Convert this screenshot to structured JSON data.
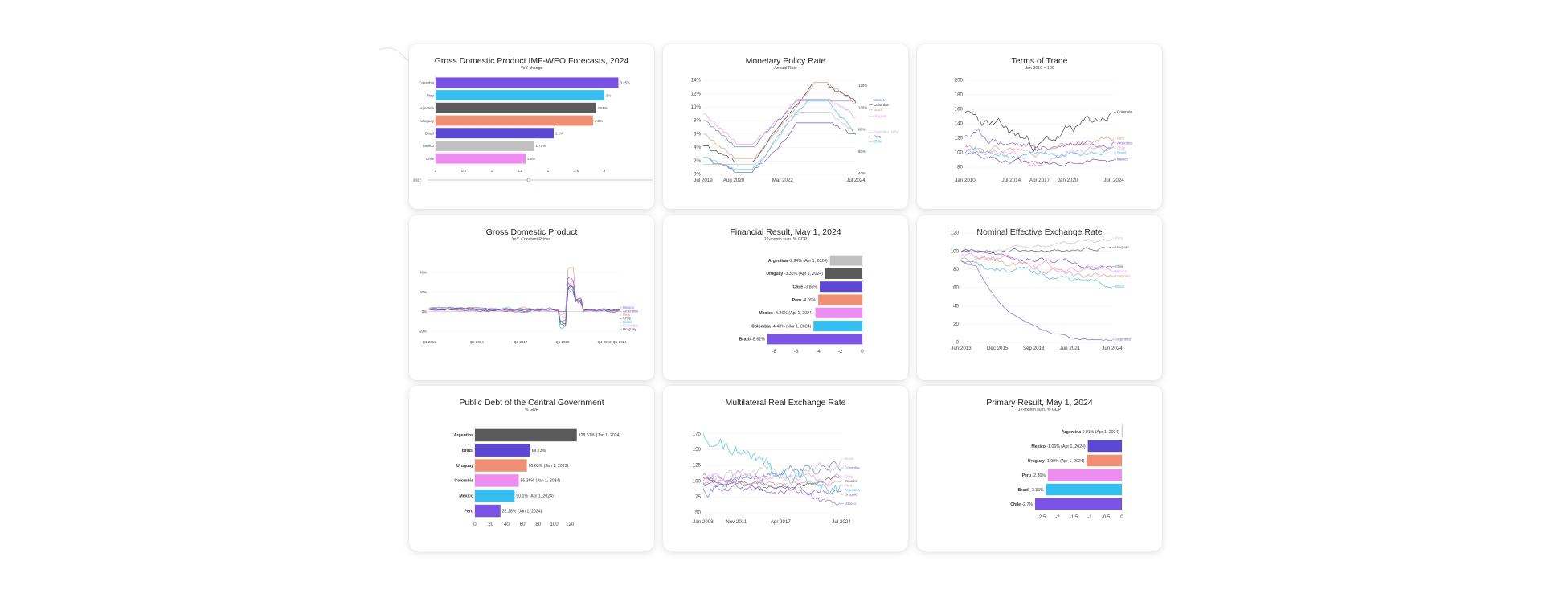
{
  "colors": {
    "purple": "#7b52e8",
    "cyan": "#35bff0",
    "gray": "#5a5a5a",
    "salmon": "#f08f74",
    "indigo": "#5c47d6",
    "lightgray": "#c0c0c0",
    "pink": "#ee8cf2",
    "blue": "#5b6fe8",
    "violet": "#8a6cf2",
    "black": "#333333"
  },
  "charts": [
    {
      "type": "hbar",
      "title": "Gross Domestic Product IMF-WEO Forecasts, 2024",
      "subtitle": "YoY change",
      "label_mode": "left",
      "categories": [
        "Colombia",
        "Peru",
        "Argentina",
        "Uruguay",
        "Brazil",
        "Mexico",
        "Chile"
      ],
      "values": [
        3.25,
        3.0,
        2.85,
        2.8,
        2.1,
        1.75,
        1.6
      ],
      "value_labels": [
        "3.25%",
        "3%",
        "2.85%",
        "2.8%",
        "2.1%",
        "1.75%",
        "1.6%"
      ],
      "bar_colors": [
        "#7b52e8",
        "#35bff0",
        "#5a5a5a",
        "#f08f74",
        "#5c47d6",
        "#c0c0c0",
        "#ee8cf2"
      ],
      "xlim": [
        0,
        3.5
      ],
      "xticks": [
        0,
        0.5,
        1,
        1.5,
        2,
        2.5,
        3
      ],
      "xtick_labels": [
        "0",
        "0.5",
        "1",
        "1.5",
        "2",
        "2.5",
        "3"
      ],
      "slider": {
        "start": "2022",
        "end": "2027",
        "position": 0.45
      }
    },
    {
      "type": "line",
      "title": "Monetary Policy Rate",
      "subtitle": "Annual Rate",
      "seed": 11,
      "ylim": [
        0,
        14
      ],
      "yticks": [
        0,
        2,
        4,
        6,
        8,
        10,
        12,
        14
      ],
      "ytick_labels": [
        "0%",
        "2%",
        "4%",
        "6%",
        "8%",
        "10%",
        "12%",
        "14%"
      ],
      "right_ticks": [
        "120%",
        "100%",
        "80%",
        "60%",
        "40%"
      ],
      "xtick_labels": [
        "Jul 2019",
        "Aug 2020",
        "Mar 2022",
        "Jul 2024"
      ],
      "xtick_positions": [
        0,
        0.2,
        0.52,
        1
      ],
      "shape": "policy",
      "series": [
        {
          "name": "Colombia",
          "color": "#333333",
          "start": 4.25,
          "low": 1.75,
          "peak": 13.25,
          "end": 10.75
        },
        {
          "name": "Mexico",
          "color": "#5b6fe8",
          "start": 8.0,
          "low": 4.0,
          "peak": 11.25,
          "end": 10.75
        },
        {
          "name": "Brazil",
          "color": "#f08f74",
          "start": 6.0,
          "low": 2.0,
          "peak": 13.75,
          "end": 10.5
        },
        {
          "name": "Uruguay",
          "color": "#ee8cf2",
          "start": 9.0,
          "low": 4.5,
          "peak": 11.5,
          "end": 8.5
        },
        {
          "name": "Peru",
          "color": "#5c47d6",
          "start": 2.5,
          "low": 0.25,
          "peak": 7.75,
          "end": 5.75
        },
        {
          "name": "Chile",
          "color": "#35bff0",
          "start": 2.5,
          "low": 0.5,
          "peak": 11.25,
          "end": 5.75
        },
        {
          "name": "Argentina (right)",
          "color": "#c0c0c0",
          "start": 1.5,
          "low": 1.2,
          "peak": 9.5,
          "end": 6.0
        }
      ],
      "legend": [
        "Colombia",
        "Mexico",
        "Brazil",
        "Uruguay",
        "Peru",
        "Chile",
        "Argentina (right)"
      ]
    },
    {
      "type": "line",
      "title": "Terms of Trade",
      "subtitle": "Jan-2010 = 100",
      "seed": 23,
      "ylim": [
        70,
        200
      ],
      "yticks": [
        80,
        100,
        120,
        140,
        160,
        180,
        200
      ],
      "ytick_labels": [
        "80",
        "100",
        "120",
        "140",
        "160",
        "180",
        "200"
      ],
      "xtick_labels": [
        "Jan 2010",
        "Jul 2014",
        "Apr 2017",
        "Jan 2020",
        "Jun 2024"
      ],
      "xtick_positions": [
        0,
        0.31,
        0.5,
        0.69,
        1
      ],
      "shape": "noisy",
      "series": [
        {
          "name": "Colombia",
          "color": "#333333",
          "start": 150,
          "mid": 110,
          "end": 155,
          "vol": 12
        },
        {
          "name": "Argentina",
          "color": "#7b52e8",
          "start": 125,
          "mid": 105,
          "end": 125,
          "vol": 9
        },
        {
          "name": "Peru",
          "color": "#f08f74",
          "start": 110,
          "mid": 100,
          "end": 118,
          "vol": 7
        },
        {
          "name": "Chile",
          "color": "#ee8cf2",
          "start": 105,
          "mid": 90,
          "end": 112,
          "vol": 8
        },
        {
          "name": "Brazil",
          "color": "#35bff0",
          "start": 102,
          "mid": 95,
          "end": 106,
          "vol": 6
        },
        {
          "name": "Mexico",
          "color": "#5c47d6",
          "start": 100,
          "mid": 86,
          "end": 90,
          "vol": 5
        }
      ],
      "legend": [
        "Colombia",
        "Argentina",
        "Peru",
        "Chile",
        "Brazil",
        "Mexico"
      ]
    },
    {
      "type": "line",
      "title": "Gross Domestic Product",
      "subtitle": "YoY. Constant Prices.",
      "seed": 37,
      "ylim": [
        -25,
        45
      ],
      "yticks": [
        -20,
        0,
        20,
        40
      ],
      "ytick_labels": [
        "-20%",
        "0%",
        "20%",
        "40%"
      ],
      "xtick_labels": [
        "Q1-2011",
        "Q2-2014",
        "Q2-2017",
        "Q1-2020",
        "Q4-2022",
        "Q1-2024"
      ],
      "xtick_positions": [
        0,
        0.25,
        0.48,
        0.7,
        0.92,
        1
      ],
      "shape": "gdp",
      "series": [
        {
          "name": "Brazil",
          "color": "#35bff0",
          "vol": 2.0
        },
        {
          "name": "Chile",
          "color": "#5a5a5a",
          "vol": 2.5
        },
        {
          "name": "Uruguay",
          "color": "#333333",
          "vol": 2.0
        },
        {
          "name": "Mexico",
          "color": "#5b6fe8",
          "vol": 2.2
        },
        {
          "name": "Peru",
          "color": "#f08f74",
          "vol": 3.0
        },
        {
          "name": "Colombia",
          "color": "#ee8cf2",
          "vol": 2.4
        },
        {
          "name": "Argentina",
          "color": "#7b52e8",
          "vol": 3.5
        }
      ],
      "legend": [
        "Brazil",
        "Chile",
        "Uruguay",
        "Mexico",
        "Peru",
        "Colombia",
        "Argentina"
      ]
    },
    {
      "type": "hbar",
      "title": "Financial Result, May 1, 2024",
      "subtitle": "12-month sum. % GDP",
      "label_mode": "inline",
      "categories": [
        "Argentina",
        "Uruguay",
        "Chile",
        "Peru",
        "Mexico",
        "Colombia",
        "Brazil"
      ],
      "values": [
        -2.94,
        -3.36,
        -3.86,
        -4.0,
        -4.26,
        -4.43,
        -8.62
      ],
      "value_labels": [
        "-2.94% (Apr 1, 2024)",
        "-3.36% (Apr 1, 2024)",
        "-3.86%",
        "-4.00%",
        "-4.26% (Apr 1, 2024)",
        "-4.43% (Mar 1, 2024)",
        "-8.62%"
      ],
      "bar_colors": [
        "#c0c0c0",
        "#5a5a5a",
        "#5c47d6",
        "#f08f74",
        "#ee8cf2",
        "#35bff0",
        "#7b52e8"
      ],
      "xlim": [
        -8.6,
        0
      ],
      "xticks": [
        -8,
        -6,
        -4,
        -2,
        0
      ],
      "xtick_labels": [
        "-8",
        "-6",
        "-4",
        "-2",
        "0"
      ]
    },
    {
      "type": "line",
      "title": "Nominal Effective Exchange Rate",
      "subtitle": "",
      "seed": 53,
      "ylim": [
        0,
        120
      ],
      "yticks": [
        0,
        20,
        40,
        60,
        80,
        100,
        120
      ],
      "ytick_labels": [
        "0",
        "20",
        "40",
        "60",
        "80",
        "100",
        "120"
      ],
      "xtick_labels": [
        "Jun 2013",
        "Dec 2015",
        "Sep 2018",
        "Jun 2021",
        "Jun 2024"
      ],
      "xtick_positions": [
        0,
        0.24,
        0.48,
        0.72,
        1
      ],
      "shape": "neer",
      "series": [
        {
          "name": "Peru",
          "color": "#c0c0c0",
          "start": 100,
          "end": 112,
          "vol": 3
        },
        {
          "name": "Uruguay",
          "color": "#5a5a5a",
          "start": 100,
          "end": 103,
          "vol": 3
        },
        {
          "name": "Chile",
          "color": "#5c47d6",
          "start": 100,
          "end": 82,
          "vol": 4
        },
        {
          "name": "Mexico",
          "color": "#ee8cf2",
          "start": 95,
          "end": 78,
          "vol": 5
        },
        {
          "name": "Colombia",
          "color": "#f08f74",
          "start": 92,
          "end": 70,
          "vol": 5
        },
        {
          "name": "Brazil",
          "color": "#35bff0",
          "start": 90,
          "end": 62,
          "vol": 5
        },
        {
          "name": "Argentina",
          "color": "#7b52e8",
          "start": 90,
          "end": 2,
          "vol": 1.5
        }
      ],
      "legend": [
        "Peru",
        "Uruguay",
        "Chile",
        "Mexico",
        "Colombia",
        "Brazil",
        "Argentina"
      ]
    },
    {
      "type": "hbar",
      "title": "Public Debt of the Central Government",
      "subtitle": "% GDP",
      "label_mode": "left_after",
      "categories": [
        "Argentina",
        "Brazil",
        "Uruguay",
        "Colombia",
        "Mexico",
        "Peru"
      ],
      "values": [
        128.67,
        69.73,
        65.63,
        55.36,
        50.1,
        32.28
      ],
      "value_labels": [
        "128.67% (Jan 1, 2024)",
        "69.73%",
        "65.63% (Jan 1, 2023)",
        "55.36% (Jan 1, 2024)",
        "50.1% (Apr 1, 2024)",
        "32.28% (Jan 1, 2024)"
      ],
      "bar_colors": [
        "#5a5a5a",
        "#5c47d6",
        "#f08f74",
        "#ee8cf2",
        "#35bff0",
        "#7b52e8"
      ],
      "xlim": [
        0,
        132
      ],
      "xticks": [
        0,
        20,
        40,
        60,
        80,
        100,
        120
      ],
      "xtick_labels": [
        "0",
        "20",
        "40",
        "60",
        "80",
        "100",
        "120"
      ]
    },
    {
      "type": "line",
      "title": "Multilateral Real Exchange Rate",
      "subtitle": "",
      "seed": 71,
      "ylim": [
        45,
        190
      ],
      "yticks": [
        50,
        75,
        100,
        125,
        150,
        175
      ],
      "ytick_labels": [
        "50",
        "75",
        "100",
        "125",
        "150",
        "175"
      ],
      "xtick_labels": [
        "Jan 2008",
        "Nov 2011",
        "Apr 2017",
        "Jul 2024"
      ],
      "xtick_positions": [
        0,
        0.24,
        0.56,
        1
      ],
      "shape": "noisy",
      "series": [
        {
          "name": "Colombia",
          "color": "#5b6fe8",
          "start": 95,
          "mid": 110,
          "end": 130,
          "vol": 14
        },
        {
          "name": "Brazil",
          "color": "#c0c0c0",
          "start": 100,
          "mid": 115,
          "end": 122,
          "vol": 14
        },
        {
          "name": "Ecuador",
          "color": "#5a5a5a",
          "start": 105,
          "mid": 95,
          "end": 102,
          "vol": 6
        },
        {
          "name": "Peru",
          "color": "#f08f74",
          "start": 100,
          "mid": 98,
          "end": 95,
          "vol": 6
        },
        {
          "name": "Chile",
          "color": "#ee8cf2",
          "start": 102,
          "mid": 108,
          "end": 98,
          "vol": 9
        },
        {
          "name": "Argentina",
          "color": "#35bff0",
          "start": 170,
          "mid": 125,
          "end": 90,
          "vol": 18
        },
        {
          "name": "Uruguay",
          "color": "#7b52e8",
          "start": 95,
          "mid": 80,
          "end": 88,
          "vol": 8
        },
        {
          "name": "Mexico",
          "color": "#8a6cf2",
          "start": 110,
          "mid": 100,
          "end": 55,
          "vol": 8
        }
      ],
      "legend": [
        "Colombia",
        "Brazil",
        "Ecuador",
        "Peru",
        "Chile",
        "Argentina",
        "Uruguay",
        "Mexico"
      ]
    },
    {
      "type": "hbar",
      "title": "Primary Result, May 1, 2024",
      "subtitle": "12-month sum. % GDP",
      "label_mode": "inline",
      "categories": [
        "Argentina",
        "Mexico",
        "Uruguay",
        "Peru",
        "Brazil",
        "Chile"
      ],
      "values": [
        0.01,
        -1.06,
        -1.09,
        -2.3,
        -2.36,
        -2.7
      ],
      "value_labels": [
        "0.01% (Apr 1, 2024)",
        "-1.06% (Apr 1, 2024)",
        "-1.09% (Apr 1, 2024)",
        "-2.30%",
        "-2.36%",
        "-2.7%"
      ],
      "bar_colors": [
        "#c0c0c0",
        "#5c47d6",
        "#f08f74",
        "#ee8cf2",
        "#35bff0",
        "#7b52e8"
      ],
      "xlim": [
        -2.75,
        0
      ],
      "xticks": [
        -2.5,
        -2,
        -1.5,
        -1,
        -0.5,
        0
      ],
      "xtick_labels": [
        "-2.5",
        "-2",
        "-1.5",
        "-1",
        "-0.5",
        "0"
      ]
    }
  ],
  "chart_data": [
    {
      "type": "bar",
      "title": "Gross Domestic Product IMF-WEO Forecasts, 2024",
      "categories": [
        "Colombia",
        "Peru",
        "Argentina",
        "Uruguay",
        "Brazil",
        "Mexico",
        "Chile"
      ],
      "values": [
        3.25,
        3.0,
        2.85,
        2.8,
        2.1,
        1.75,
        1.6
      ],
      "xlabel": "YoY change"
    },
    {
      "type": "line",
      "title": "Monetary Policy Rate",
      "ylabel": "Annual Rate",
      "ylim": [
        0,
        14
      ]
    },
    {
      "type": "line",
      "title": "Terms of Trade",
      "ylabel": "Jan-2010 = 100",
      "ylim": [
        70,
        200
      ]
    },
    {
      "type": "line",
      "title": "Gross Domestic Product",
      "ylabel": "YoY. Constant Prices.",
      "ylim": [
        -25,
        45
      ]
    },
    {
      "type": "bar",
      "title": "Financial Result, May 1, 2024",
      "categories": [
        "Argentina",
        "Uruguay",
        "Chile",
        "Peru",
        "Mexico",
        "Colombia",
        "Brazil"
      ],
      "values": [
        -2.94,
        -3.36,
        -3.86,
        -4.0,
        -4.26,
        -4.43,
        -8.62
      ]
    },
    {
      "type": "line",
      "title": "Nominal Effective Exchange Rate",
      "ylim": [
        0,
        120
      ]
    },
    {
      "type": "bar",
      "title": "Public Debt of the Central Government",
      "categories": [
        "Argentina",
        "Brazil",
        "Uruguay",
        "Colombia",
        "Mexico",
        "Peru"
      ],
      "values": [
        128.67,
        69.73,
        65.63,
        55.36,
        50.1,
        32.28
      ]
    },
    {
      "type": "line",
      "title": "Multilateral Real Exchange Rate",
      "ylim": [
        45,
        190
      ]
    },
    {
      "type": "bar",
      "title": "Primary Result, May 1, 2024",
      "categories": [
        "Argentina",
        "Mexico",
        "Uruguay",
        "Peru",
        "Brazil",
        "Chile"
      ],
      "values": [
        0.01,
        -1.06,
        -1.09,
        -2.3,
        -2.36,
        -2.7
      ]
    }
  ]
}
